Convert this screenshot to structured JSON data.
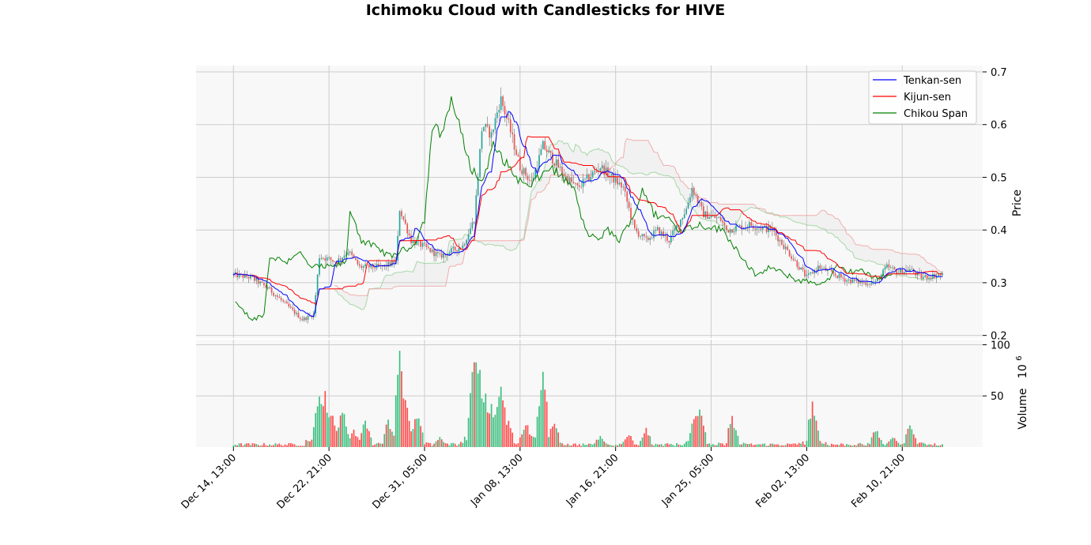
{
  "chart_data": {
    "type": "candlestick",
    "title": "Ichimoku Cloud with Candlesticks for HIVE",
    "price_axis": {
      "label": "Price",
      "ylim": [
        0.195,
        0.712
      ],
      "ticks": [
        0.2,
        0.3,
        0.4,
        0.5,
        0.6,
        0.7
      ],
      "tick_labels": [
        "0.2",
        "0.3",
        "0.4",
        "0.5",
        "0.6",
        "0.7"
      ]
    },
    "volume_axis": {
      "label": "Volume",
      "exponent_label": "10",
      "exponent_power": "6",
      "ylim": [
        0,
        105
      ],
      "ticks": [
        50,
        100
      ],
      "tick_labels": [
        "50",
        "100"
      ]
    },
    "x_axis": {
      "tick_labels": [
        "Dec 14, 13:00",
        "Dec 22, 21:00",
        "Dec 31, 05:00",
        "Jan 08, 13:00",
        "Jan 16, 21:00",
        "Jan 25, 05:00",
        "Feb 02, 13:00",
        "Feb 10, 21:00"
      ],
      "tick_days": [
        0,
        8.333,
        16.667,
        25.0,
        33.333,
        41.667,
        50.0,
        58.333
      ],
      "range_days": [
        -3.26,
        65.35
      ],
      "data_range_days": [
        0,
        61.9
      ]
    },
    "grid": true,
    "legend": {
      "position": "top-right",
      "entries": [
        {
          "label": "Tenkan-sen",
          "color": "#0000ff"
        },
        {
          "label": "Kijun-sen",
          "color": "#ff0000"
        },
        {
          "label": "Chikou Span",
          "color": "#008000"
        }
      ]
    },
    "colors": {
      "up": "#26a69a",
      "down": "#ef5350",
      "volume_up": "#3dbf7f",
      "volume_down": "#ff4d4d",
      "senkou_a": "#6abf6a",
      "senkou_b": "#f08080",
      "panel_bg": "#f8f8f8",
      "grid": "#cccccc"
    },
    "close_keypoints": [
      [
        0,
        0.315
      ],
      [
        1.5,
        0.31
      ],
      [
        3,
        0.29
      ],
      [
        5,
        0.25
      ],
      [
        6,
        0.23
      ],
      [
        7,
        0.24
      ],
      [
        7.5,
        0.35
      ],
      [
        9,
        0.34
      ],
      [
        10,
        0.36
      ],
      [
        11,
        0.33
      ],
      [
        13,
        0.33
      ],
      [
        14.2,
        0.34
      ],
      [
        14.5,
        0.44
      ],
      [
        15.5,
        0.38
      ],
      [
        16.5,
        0.37
      ],
      [
        18,
        0.35
      ],
      [
        20,
        0.37
      ],
      [
        21,
        0.42
      ],
      [
        21.7,
        0.6
      ],
      [
        22.5,
        0.58
      ],
      [
        23.3,
        0.65
      ],
      [
        24,
        0.6
      ],
      [
        25,
        0.52
      ],
      [
        26,
        0.49
      ],
      [
        27,
        0.56
      ],
      [
        28,
        0.53
      ],
      [
        29,
        0.5
      ],
      [
        30,
        0.48
      ],
      [
        31,
        0.5
      ],
      [
        32,
        0.52
      ],
      [
        33,
        0.5
      ],
      [
        34,
        0.48
      ],
      [
        35,
        0.4
      ],
      [
        36,
        0.38
      ],
      [
        37,
        0.4
      ],
      [
        38,
        0.38
      ],
      [
        39.5,
        0.44
      ],
      [
        40,
        0.48
      ],
      [
        41,
        0.43
      ],
      [
        42.5,
        0.42
      ],
      [
        43,
        0.4
      ],
      [
        45,
        0.41
      ],
      [
        47,
        0.4
      ],
      [
        48,
        0.37
      ],
      [
        49,
        0.34
      ],
      [
        50,
        0.31
      ],
      [
        51,
        0.33
      ],
      [
        52,
        0.32
      ],
      [
        53.5,
        0.305
      ],
      [
        55,
        0.3
      ],
      [
        56,
        0.3
      ],
      [
        57,
        0.33
      ],
      [
        58,
        0.32
      ],
      [
        59,
        0.325
      ],
      [
        60,
        0.31
      ],
      [
        61.9,
        0.315
      ]
    ],
    "volume_spikes": [
      [
        7.5,
        60
      ],
      [
        8,
        56
      ],
      [
        8.5,
        40
      ],
      [
        9.5,
        42
      ],
      [
        10.5,
        18
      ],
      [
        11.5,
        30
      ],
      [
        13.5,
        28
      ],
      [
        14.5,
        102
      ],
      [
        14.8,
        54
      ],
      [
        15,
        50
      ],
      [
        16,
        37
      ],
      [
        18,
        10
      ],
      [
        21,
        92
      ],
      [
        21.2,
        93
      ],
      [
        21.4,
        88
      ],
      [
        21.7,
        60
      ],
      [
        22,
        55
      ],
      [
        22.5,
        46
      ],
      [
        23.3,
        74
      ],
      [
        24,
        28
      ],
      [
        25.5,
        27
      ],
      [
        27,
        81
      ],
      [
        28,
        30
      ],
      [
        32,
        12
      ],
      [
        34.5,
        14
      ],
      [
        36,
        19
      ],
      [
        40.3,
        41
      ],
      [
        40.7,
        41
      ],
      [
        43.5,
        31
      ],
      [
        50.5,
        46
      ],
      [
        51,
        8
      ],
      [
        56,
        20
      ],
      [
        57.5,
        12
      ],
      [
        59,
        23
      ],
      [
        60,
        6
      ]
    ]
  }
}
